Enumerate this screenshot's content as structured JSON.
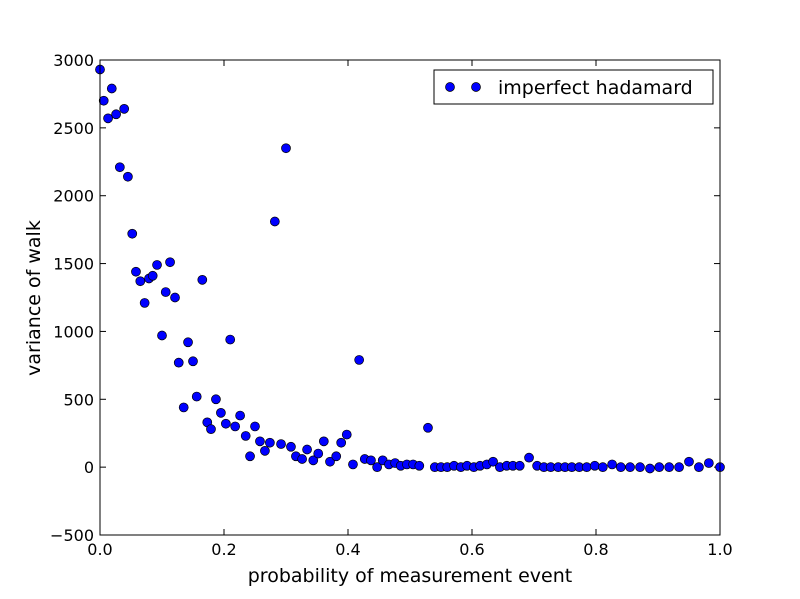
{
  "chart_data": {
    "type": "scatter",
    "xlabel": "probability of measurement event",
    "ylabel": "variance of walk",
    "xlim": [
      0,
      1
    ],
    "ylim": [
      -500,
      3000
    ],
    "xticks": [
      {
        "value": 0,
        "label": "0.0"
      },
      {
        "value": 0.2,
        "label": "0.2"
      },
      {
        "value": 0.4,
        "label": "0.4"
      },
      {
        "value": 0.6,
        "label": "0.6"
      },
      {
        "value": 0.8,
        "label": "0.8"
      },
      {
        "value": 1,
        "label": "1.0"
      }
    ],
    "yticks": [
      {
        "value": -500,
        "label": "−500"
      },
      0,
      500,
      1000,
      1500,
      2000,
      2500,
      3000
    ],
    "grid": false,
    "legend": "upper right",
    "series": [
      {
        "name": "imperfect hadamard",
        "color": "#0000ff",
        "x": [
          0,
          0.006,
          0.013,
          0.019,
          0.026,
          0.032,
          0.039,
          0.045,
          0.052,
          0.058,
          0.065,
          0.072,
          0.079,
          0.085,
          0.092,
          0.1,
          0.106,
          0.113,
          0.121,
          0.127,
          0.135,
          0.142,
          0.15,
          0.156,
          0.165,
          0.173,
          0.179,
          0.187,
          0.195,
          0.203,
          0.21,
          0.218,
          0.226,
          0.235,
          0.242,
          0.25,
          0.258,
          0.266,
          0.274,
          0.282,
          0.292,
          0.3,
          0.308,
          0.316,
          0.326,
          0.334,
          0.344,
          0.352,
          0.361,
          0.371,
          0.381,
          0.389,
          0.398,
          0.408,
          0.418,
          0.427,
          0.437,
          0.447,
          0.456,
          0.466,
          0.476,
          0.485,
          0.495,
          0.505,
          0.515,
          0.529,
          0.54,
          0.55,
          0.56,
          0.571,
          0.582,
          0.592,
          0.603,
          0.613,
          0.624,
          0.634,
          0.645,
          0.656,
          0.666,
          0.677,
          0.692,
          0.705,
          0.716,
          0.727,
          0.739,
          0.75,
          0.761,
          0.773,
          0.785,
          0.798,
          0.811,
          0.826,
          0.84,
          0.855,
          0.871,
          0.887,
          0.902,
          0.918,
          0.934,
          0.95,
          0.966,
          0.982,
          1
        ],
        "values": [
          2930,
          2700,
          2570,
          2790,
          2600,
          2210,
          2640,
          2140,
          1720,
          1440,
          1370,
          1210,
          1390,
          1410,
          1490,
          970,
          1290,
          1510,
          1250,
          770,
          440,
          920,
          780,
          520,
          1380,
          330,
          280,
          500,
          400,
          320,
          940,
          300,
          380,
          230,
          80,
          300,
          190,
          120,
          180,
          1810,
          170,
          2350,
          150,
          80,
          60,
          130,
          50,
          100,
          190,
          40,
          80,
          180,
          240,
          20,
          790,
          60,
          50,
          0,
          50,
          20,
          30,
          10,
          20,
          20,
          10,
          290,
          0,
          0,
          0,
          10,
          0,
          10,
          0,
          10,
          20,
          40,
          0,
          10,
          10,
          10,
          70,
          10,
          0,
          0,
          0,
          0,
          0,
          0,
          0,
          10,
          0,
          20,
          0,
          0,
          0,
          -10,
          0,
          0,
          0,
          40,
          0,
          30,
          0
        ]
      }
    ]
  }
}
